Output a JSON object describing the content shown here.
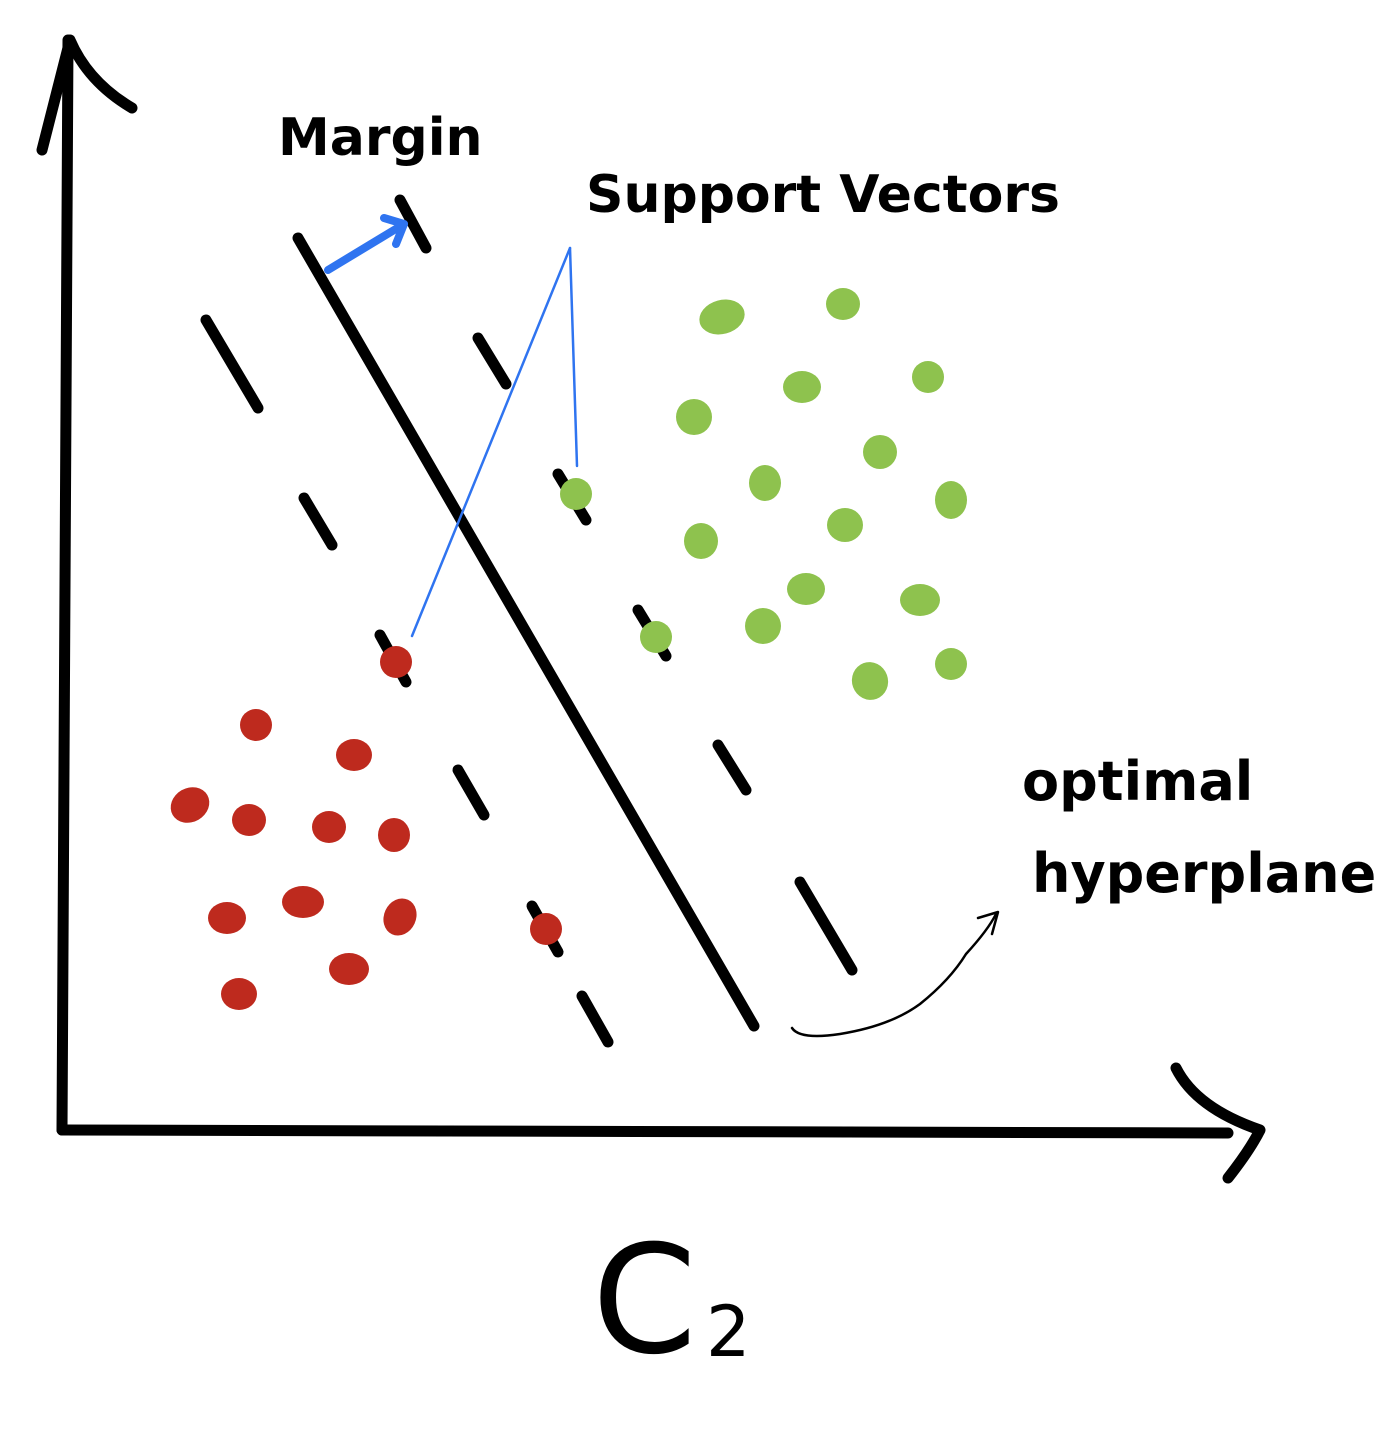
{
  "labels": {
    "margin": "Margin",
    "support_vectors": "Support Vectors",
    "optimal_line1": "optimal",
    "optimal_line2": "hyperplane",
    "x_axis_main": "C",
    "x_axis_sub": "2"
  },
  "colors": {
    "ink": "#000000",
    "class_a": "#be2a1e",
    "class_b": "#8ec24e",
    "annotation": "#2f74f0"
  },
  "classes": {
    "red": {
      "count": 14,
      "support_vectors": 2
    },
    "green": {
      "count": 18,
      "support_vectors": 2
    }
  }
}
